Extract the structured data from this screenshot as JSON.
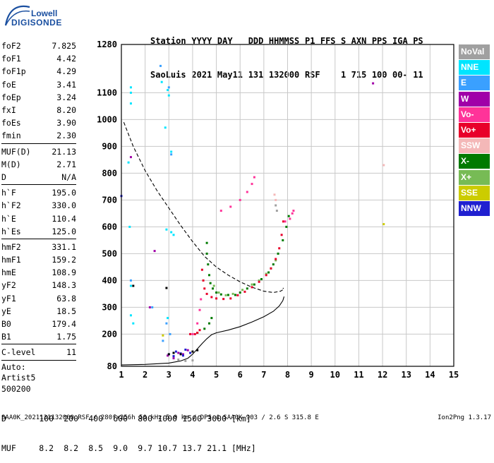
{
  "logo": {
    "top": "Lowell",
    "bottom": "DIGISONDE"
  },
  "header": {
    "labels": [
      "Station",
      "YYYY",
      "DAY",
      "DDD",
      "HHMMSS",
      "P1",
      "FFS",
      "S",
      "AXN",
      "PPS",
      "IGA",
      "PS"
    ],
    "values": [
      "SaoLuis",
      "2021",
      "May11",
      "131",
      "132000",
      "RSF",
      "",
      "1",
      "715",
      "100",
      "00-",
      "11"
    ]
  },
  "params": [
    {
      "name": "foF2",
      "value": "7.825"
    },
    {
      "name": "foF1",
      "value": "4.42"
    },
    {
      "name": "foF1p",
      "value": "4.29"
    },
    {
      "name": "foE",
      "value": "3.41"
    },
    {
      "name": "foEp",
      "value": "3.24"
    },
    {
      "name": "fxI",
      "value": "8.20"
    },
    {
      "name": "foEs",
      "value": "3.90"
    },
    {
      "name": "fmin",
      "value": "2.30"
    },
    {
      "sep": true
    },
    {
      "name": "MUF(D)",
      "value": "21.13"
    },
    {
      "name": "M(D)",
      "value": "2.71"
    },
    {
      "name": "D",
      "value": "N/A"
    },
    {
      "sep": true
    },
    {
      "name": "h`F",
      "value": "195.0"
    },
    {
      "name": "h`F2",
      "value": "330.0"
    },
    {
      "name": "h`E",
      "value": "110.4"
    },
    {
      "name": "h`Es",
      "value": "125.0"
    },
    {
      "sep": true
    },
    {
      "name": "hmF2",
      "value": "331.1"
    },
    {
      "name": "hmF1",
      "value": "159.2"
    },
    {
      "name": "hmE",
      "value": "108.9"
    },
    {
      "name": "yF2",
      "value": "148.3"
    },
    {
      "name": "yF1",
      "value": "63.8"
    },
    {
      "name": "yE",
      "value": "18.5"
    },
    {
      "name": "B0",
      "value": "179.4"
    },
    {
      "name": "B1",
      "value": "1.75"
    },
    {
      "sep": true
    },
    {
      "name": "C-level",
      "value": "11"
    },
    {
      "sep": true
    }
  ],
  "auto": [
    "Auto:",
    "Artist5",
    "500200"
  ],
  "legend": [
    {
      "label": "NoVal",
      "color": "#a0a0a0"
    },
    {
      "label": "NNE",
      "color": "#00e5ff"
    },
    {
      "label": "E",
      "color": "#3aa0ff"
    },
    {
      "label": "W",
      "color": "#a000a8"
    },
    {
      "label": "Vo-",
      "color": "#ff3399"
    },
    {
      "label": "Vo+",
      "color": "#e8002a"
    },
    {
      "label": "SSW",
      "color": "#f4b8b8"
    },
    {
      "label": "X-",
      "color": "#007a00"
    },
    {
      "label": "X+",
      "color": "#77bb55"
    },
    {
      "label": "SSE",
      "color": "#cccc00"
    },
    {
      "label": "NNW",
      "color": "#2020d0"
    }
  ],
  "distance_table": {
    "d_label": "D",
    "d_values": [
      "100",
      "200",
      "400",
      "600",
      "800",
      "1000",
      "1500",
      "3000"
    ],
    "d_unit": "[km]",
    "muf_label": "MUF",
    "muf_values": [
      "8.2",
      "8.2",
      "8.5",
      "9.0",
      "9.7",
      "10.7",
      "13.7",
      "21.1"
    ],
    "muf_unit": "[MHz]"
  },
  "footer": "SAA0K_2021131132000.RSF / 280fx256h 50 kHz 5.0 km / DPS-4 SAA0K 903 / 2.6 S 315.8 E",
  "version": "Ion2Png 1.3.17",
  "chart_data": {
    "type": "scatter",
    "xlim": [
      1,
      15
    ],
    "ylim": [
      80,
      1280
    ],
    "xticks": [
      1,
      2,
      3,
      4,
      5,
      6,
      7,
      8,
      9,
      10,
      11,
      12,
      13,
      14,
      15
    ],
    "yticks": [
      80,
      200,
      300,
      400,
      500,
      600,
      700,
      800,
      900,
      1000,
      1100,
      1280
    ],
    "grid": true,
    "series": [
      {
        "name": "X-",
        "color": "#007a00",
        "style": "points",
        "points": [
          [
            4.6,
            540
          ],
          [
            4.6,
            500
          ],
          [
            4.65,
            460
          ],
          [
            4.7,
            420
          ],
          [
            4.75,
            390
          ],
          [
            4.85,
            370
          ],
          [
            5.0,
            355
          ],
          [
            5.2,
            348
          ],
          [
            5.5,
            346
          ],
          [
            5.8,
            346
          ],
          [
            6.0,
            355
          ],
          [
            6.3,
            370
          ],
          [
            6.6,
            385
          ],
          [
            6.9,
            405
          ],
          [
            7.2,
            430
          ],
          [
            7.4,
            460
          ],
          [
            7.6,
            500
          ],
          [
            7.8,
            550
          ],
          [
            7.95,
            600
          ],
          [
            8.05,
            640
          ],
          [
            4.2,
            205
          ],
          [
            4.5,
            220
          ],
          [
            4.7,
            240
          ],
          [
            4.8,
            260
          ]
        ]
      },
      {
        "name": "X+",
        "color": "#77bb55",
        "style": "points",
        "points": [
          [
            4.9,
            380
          ],
          [
            5.1,
            355
          ],
          [
            5.4,
            345
          ],
          [
            5.7,
            350
          ],
          [
            6.1,
            365
          ],
          [
            6.5,
            385
          ],
          [
            6.8,
            400
          ],
          [
            7.1,
            425
          ],
          [
            7.3,
            445
          ],
          [
            7.5,
            475
          ]
        ]
      },
      {
        "name": "Vo+",
        "color": "#e8002a",
        "style": "points",
        "points": [
          [
            4.4,
            440
          ],
          [
            4.45,
            400
          ],
          [
            4.5,
            370
          ],
          [
            4.6,
            350
          ],
          [
            4.8,
            338
          ],
          [
            5.0,
            333
          ],
          [
            5.3,
            331
          ],
          [
            5.6,
            333
          ],
          [
            5.9,
            345
          ],
          [
            6.2,
            358
          ],
          [
            6.5,
            375
          ],
          [
            6.8,
            395
          ],
          [
            7.1,
            420
          ],
          [
            7.3,
            445
          ],
          [
            7.5,
            480
          ],
          [
            7.65,
            520
          ],
          [
            7.75,
            570
          ],
          [
            7.82,
            620
          ],
          [
            3.9,
            200
          ],
          [
            4.1,
            200
          ],
          [
            4.2,
            205
          ],
          [
            4.3,
            215
          ]
        ]
      },
      {
        "name": "Vo-",
        "color": "#ff3399",
        "style": "points",
        "points": [
          [
            4.0,
            200
          ],
          [
            4.2,
            240
          ],
          [
            4.3,
            290
          ],
          [
            4.35,
            330
          ],
          [
            5.2,
            660
          ],
          [
            5.6,
            675
          ],
          [
            6.0,
            700
          ],
          [
            6.3,
            730
          ],
          [
            6.5,
            760
          ],
          [
            6.6,
            785
          ],
          [
            7.9,
            620
          ],
          [
            8.1,
            630
          ],
          [
            8.2,
            650
          ],
          [
            8.25,
            660
          ]
        ]
      },
      {
        "name": "NNE",
        "color": "#00e5ff",
        "style": "points",
        "points": [
          [
            1.4,
            1120
          ],
          [
            1.4,
            1100
          ],
          [
            1.4,
            1060
          ],
          [
            1.35,
            600
          ],
          [
            1.4,
            380
          ],
          [
            1.5,
            240
          ],
          [
            2.7,
            1140
          ],
          [
            2.95,
            1110
          ],
          [
            3.0,
            1090
          ],
          [
            3.1,
            880
          ],
          [
            2.85,
            970
          ],
          [
            2.9,
            590
          ],
          [
            3.1,
            580
          ],
          [
            3.2,
            570
          ],
          [
            1.3,
            840
          ],
          [
            1.4,
            270
          ],
          [
            2.95,
            260
          ]
        ]
      },
      {
        "name": "E",
        "color": "#3aa0ff",
        "style": "points",
        "points": [
          [
            2.65,
            1200
          ],
          [
            3.0,
            1120
          ],
          [
            3.1,
            870
          ],
          [
            2.9,
            240
          ],
          [
            3.05,
            200
          ],
          [
            1.4,
            400
          ],
          [
            2.3,
            300
          ],
          [
            2.75,
            175
          ]
        ]
      },
      {
        "name": "W",
        "color": "#a000a8",
        "style": "points",
        "points": [
          [
            1.4,
            860
          ],
          [
            2.4,
            510
          ],
          [
            2.2,
            300
          ],
          [
            3.4,
            130
          ],
          [
            3.6,
            125
          ],
          [
            3.8,
            140
          ],
          [
            11.6,
            1135
          ],
          [
            3.2,
            110
          ],
          [
            2.95,
            120
          ]
        ]
      },
      {
        "name": "NNW",
        "color": "#2020d0",
        "style": "points",
        "points": [
          [
            1.0,
            715
          ],
          [
            3.0,
            125
          ],
          [
            3.3,
            135
          ],
          [
            3.5,
            128
          ],
          [
            3.7,
            142
          ],
          [
            3.9,
            130
          ],
          [
            3.2,
            118
          ],
          [
            3.6,
            120
          ]
        ]
      },
      {
        "name": "SSE",
        "color": "#cccc00",
        "style": "points",
        "points": [
          [
            12.05,
            610
          ],
          [
            2.75,
            195
          ]
        ]
      },
      {
        "name": "SSW",
        "color": "#f4b8b8",
        "style": "points",
        "points": [
          [
            12.05,
            830
          ],
          [
            7.45,
            720
          ],
          [
            7.5,
            700
          ]
        ]
      },
      {
        "name": "NoVal",
        "color": "#a0a0a0",
        "style": "points",
        "points": [
          [
            3.4,
            105
          ],
          [
            3.7,
            100
          ],
          [
            4.0,
            102
          ],
          [
            7.5,
            680
          ],
          [
            7.55,
            660
          ]
        ]
      },
      {
        "name": "",
        "color": "#000000",
        "style": "dashed",
        "points": [
          [
            1.1,
            990
          ],
          [
            1.5,
            900
          ],
          [
            2.0,
            810
          ],
          [
            2.5,
            735
          ],
          [
            3.0,
            670
          ],
          [
            3.5,
            605
          ],
          [
            4.0,
            545
          ],
          [
            4.5,
            490
          ],
          [
            5.0,
            450
          ],
          [
            5.5,
            420
          ],
          [
            6.0,
            395
          ],
          [
            6.5,
            375
          ],
          [
            7.0,
            360
          ],
          [
            7.4,
            355
          ],
          [
            7.7,
            360
          ],
          [
            7.85,
            368
          ],
          [
            7.8,
            372
          ]
        ]
      },
      {
        "name": "",
        "color": "#000000",
        "style": "solid",
        "points": [
          [
            1.0,
            85
          ],
          [
            2.0,
            87
          ],
          [
            3.0,
            92
          ],
          [
            3.5,
            100
          ],
          [
            3.8,
            110
          ],
          [
            4.0,
            125
          ],
          [
            4.2,
            145
          ],
          [
            4.4,
            165
          ],
          [
            4.6,
            183
          ],
          [
            4.8,
            198
          ],
          [
            5.0,
            205
          ],
          [
            5.5,
            215
          ],
          [
            6.0,
            228
          ],
          [
            6.5,
            245
          ],
          [
            7.0,
            265
          ],
          [
            7.4,
            285
          ],
          [
            7.65,
            305
          ],
          [
            7.8,
            325
          ],
          [
            7.85,
            340
          ]
        ]
      },
      {
        "name": "",
        "color": "#000000",
        "style": "points",
        "points": [
          [
            1.5,
            380
          ],
          [
            3.0,
            125
          ],
          [
            3.2,
            130
          ],
          [
            3.5,
            125
          ],
          [
            4.0,
            135
          ],
          [
            4.2,
            140
          ],
          [
            2.9,
            372
          ]
        ]
      }
    ]
  }
}
